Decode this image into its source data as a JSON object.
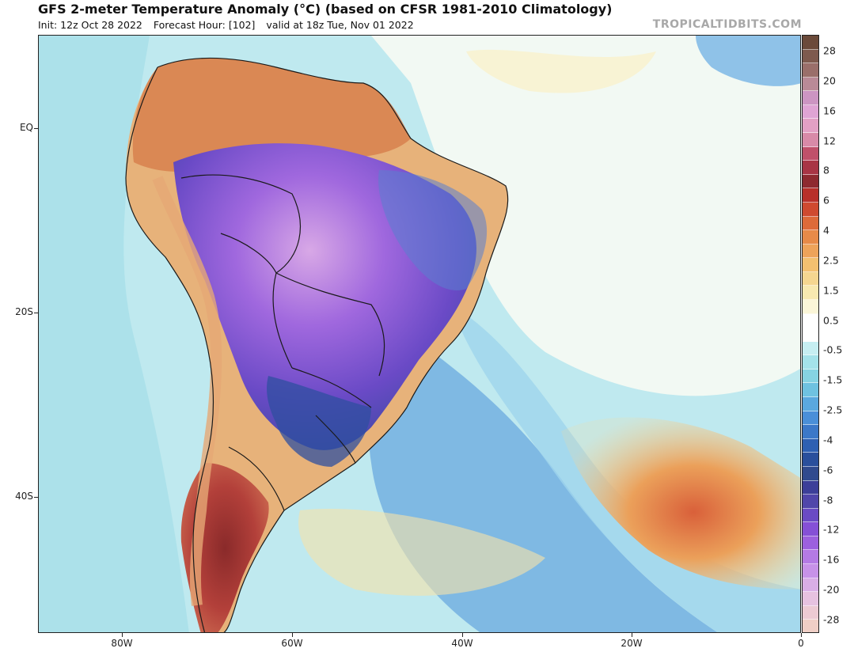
{
  "title": "GFS 2-meter Temperature Anomaly (°C) (based on CFSR 1981-2010 Climatology)",
  "subtitle": {
    "init": "Init: 12z Oct 28 2022",
    "forecast_hour": "Forecast Hour: [102]",
    "valid": "valid at 18z Tue, Nov 01 2022"
  },
  "brand": "TROPICALTIDBITS.COM",
  "map": {
    "lat_labels": [
      "EQ",
      "20S",
      "40S"
    ],
    "lon_labels": [
      "80W",
      "60W",
      "40W",
      "20W",
      "0"
    ],
    "ocean_color": "#bfe9ef",
    "land_border_color": "#1a1a1a"
  },
  "colorbar": {
    "labels": [
      "28",
      "20",
      "16",
      "12",
      "8",
      "6",
      "4",
      "2.5",
      "1.5",
      "0.5",
      "-0.5",
      "-1.5",
      "-2.5",
      "-4",
      "-6",
      "-8",
      "-12",
      "-16",
      "-20",
      "-28"
    ],
    "colors": [
      "#6b4a3a",
      "#7e5a4e",
      "#9a6f6a",
      "#b98a97",
      "#cc95c2",
      "#dfa4d4",
      "#e2a0c4",
      "#d88aa8",
      "#c0506a",
      "#a83545",
      "#8e2a30",
      "#b8302a",
      "#cf4a30",
      "#dd6a3a",
      "#e78a48",
      "#eea35a",
      "#f3c070",
      "#f5d690",
      "#f8e9b0",
      "#fbf6d8",
      "#ffffff",
      "#ffffff",
      "#c6eef2",
      "#a4e2ea",
      "#86d3e2",
      "#6fc2e0",
      "#5aa8de",
      "#4a8fd8",
      "#3c78c8",
      "#2f60b2",
      "#2a4f9c",
      "#304a8e",
      "#3c3f99",
      "#5046aa",
      "#6a4bc4",
      "#8550d6",
      "#9c60de",
      "#b47ae4",
      "#c792e8",
      "#d9aee6",
      "#e6c2e0",
      "#eccad3",
      "#f0cfc6"
    ]
  }
}
